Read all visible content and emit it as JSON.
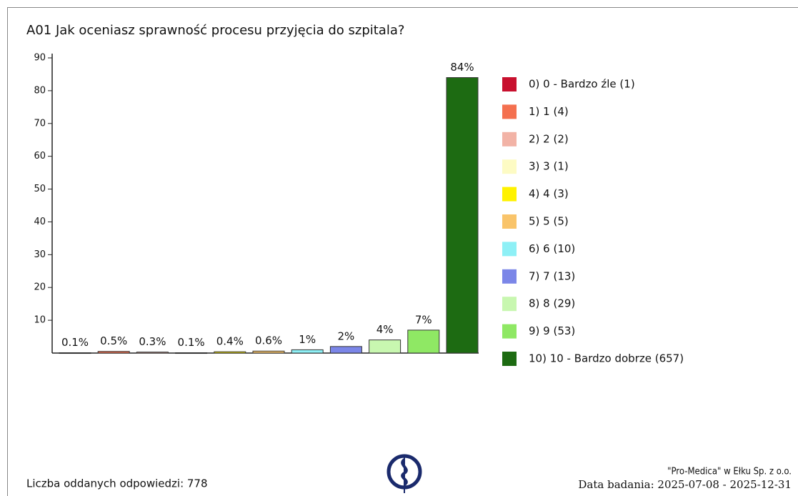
{
  "chart_data": {
    "type": "bar",
    "title": "A01 Jak oceniasz sprawność procesu przyjęcia do szpitala?",
    "categories": [
      "0) 0 - Bardzo źle (1)",
      "1) 1 (4)",
      "2) 2 (2)",
      "3) 3 (1)",
      "4) 4 (3)",
      "5) 5 (5)",
      "6) 6 (10)",
      "7) 7 (13)",
      "8) 8 (29)",
      "9) 9 (53)",
      "10) 10 - Bardzo dobrze (657)"
    ],
    "values": [
      0.1,
      0.5,
      0.3,
      0.1,
      0.4,
      0.6,
      1,
      2,
      4,
      7,
      84
    ],
    "value_labels": [
      "0.1%",
      "0.5%",
      "0.3%",
      "0.1%",
      "0.4%",
      "0.6%",
      "1%",
      "2%",
      "4%",
      "7%",
      "84%"
    ],
    "colors": [
      "#c8102e",
      "#f4704f",
      "#f2b3a6",
      "#fdfbc4",
      "#fff200",
      "#f9c46a",
      "#8ef0f6",
      "#7b86e8",
      "#c8f7b0",
      "#8fe864",
      "#1d6b12"
    ],
    "ylim": [
      0,
      90
    ],
    "yticks": [
      10,
      20,
      30,
      40,
      50,
      60,
      70,
      80,
      90
    ],
    "legend": "right"
  },
  "footer": {
    "responses": "Liczba oddanych odpowiedzi: 778",
    "company": "\"Pro-Medica\" w Ełku Sp. z o.o.",
    "date": "Data badania: 2025-07-08 - 2025-12-31"
  }
}
